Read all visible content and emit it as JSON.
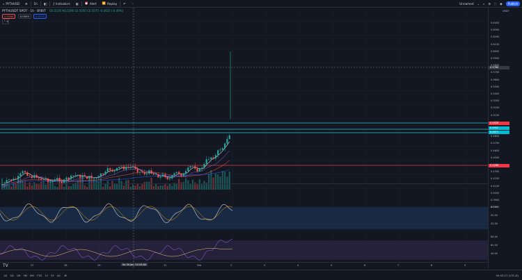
{
  "toolbar": {
    "symbol": "PYTHUSD",
    "interval": "1h",
    "indicators": "Indicators",
    "alert": "Alert",
    "replay": "Replay",
    "layout_name": "Unnamed",
    "publish": "Publish"
  },
  "legend": {
    "title": "PYTHUSDT SPOT · 1h · BYBIT",
    "ohlc": "O0.5100 H0.5290 L0.5050 C0.5075 -0.0025 (-0.49%)",
    "prices": [
      "0.5066",
      "0.0005",
      "0.5072"
    ],
    "collapse": "^ 4"
  },
  "yaxis": {
    "currency": "USDT",
    "labels": [
      "0.6400",
      "0.6300",
      "0.6200",
      "0.6100",
      "0.6000",
      "0.5900",
      "0.5800",
      "0.5700",
      "0.5600",
      "0.5500",
      "0.5400",
      "0.5300",
      "0.5200",
      "0.5100",
      "0.5000",
      "0.4900",
      "0.4800",
      "0.4700",
      "0.4600",
      "0.4500",
      "0.4400",
      "0.4300",
      "0.4200",
      "0.4100",
      "0.4000",
      "0.3900",
      "0.3800"
    ],
    "markers": {
      "crosshair": "0.5780",
      "current": "0.4928",
      "zone_a": "0.4902",
      "zone_b": "0.4871",
      "support": "0.4288"
    },
    "osc1": [
      "80.00",
      "50.00",
      "20.00"
    ],
    "osc2": [
      "80.00",
      "60.00",
      "40.00"
    ]
  },
  "xaxis": {
    "labels": [
      "27",
      "28",
      "29",
      "30",
      "31",
      "Feb",
      "2",
      "3",
      "4",
      "5",
      "6",
      "7",
      "8",
      "9",
      "10"
    ],
    "crosshair": "Sa 30 Jan '24 03:00"
  },
  "bottom": {
    "timeframes": [
      "1D",
      "5D",
      "1M",
      "3M",
      "6M",
      "YTD",
      "1Y",
      "5Y",
      "All"
    ],
    "clock": "00:53:27 (UTC-8)"
  },
  "colors": {
    "bg": "#131722",
    "up": "#26a69a",
    "down": "#ef5350",
    "accent": "#2962ff",
    "support": "#f23645"
  }
}
